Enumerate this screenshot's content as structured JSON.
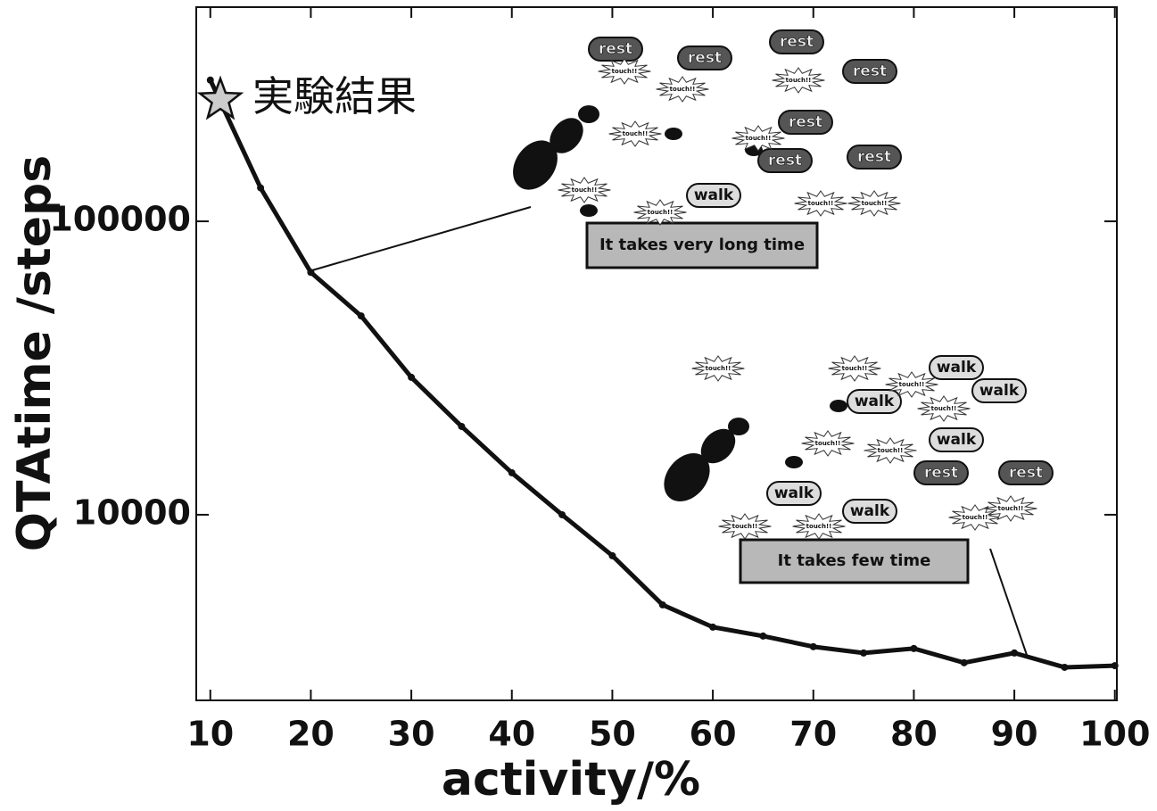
{
  "chart_data": {
    "type": "line",
    "x_label": "activity/%",
    "y_label": "QTAtime /steps",
    "x": [
      10,
      15,
      20,
      25,
      30,
      35,
      40,
      45,
      50,
      55,
      60,
      65,
      70,
      75,
      80,
      85,
      90,
      95,
      100
    ],
    "values": [
      303000,
      130000,
      67000,
      47600,
      29400,
      20000,
      13900,
      10000,
      7250,
      4930,
      4140,
      3860,
      3550,
      3380,
      3500,
      3130,
      3380,
      3020,
      3060
    ],
    "color": "#111111",
    "highlight": {
      "label": "実験結果",
      "x": 11,
      "value": 259000
    },
    "xlim": [
      8.6,
      100.2
    ],
    "xticks": [
      10,
      20,
      30,
      40,
      50,
      60,
      70,
      80,
      90,
      100
    ],
    "ylim": [
      2330,
      537000
    ],
    "yticks": [
      10000,
      100000
    ],
    "log_y": true,
    "grid": false,
    "illustrations": [
      {
        "caption": "It takes very long time",
        "labels": [
          "rest",
          "rest",
          "rest",
          "rest",
          "rest",
          "rest",
          "rest",
          "walk",
          "touch!!",
          "touch!!",
          "touch!!",
          "touch!!",
          "touch!!",
          "touch!!",
          "touch!!",
          "touch!!",
          "touch!!"
        ]
      },
      {
        "caption": "It takes few time",
        "labels": [
          "walk",
          "walk",
          "walk",
          "walk",
          "walk",
          "walk",
          "rest",
          "rest",
          "touch!!",
          "touch!!",
          "touch!!",
          "touch!!",
          "touch!!",
          "touch!!",
          "touch!!",
          "touch!!",
          "touch!!",
          "touch!!"
        ]
      }
    ]
  }
}
